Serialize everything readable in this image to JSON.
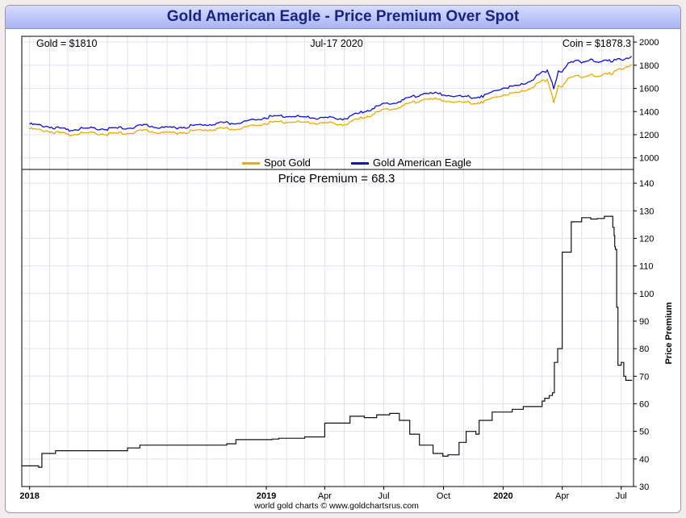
{
  "title": "Gold American Eagle - Price Premium Over Spot",
  "header": {
    "left": "Gold = $1810",
    "center": "Jul-17  2020",
    "right": "Coin = $1878.3"
  },
  "footer": "world gold charts © www.goldchartsrus.com",
  "colors": {
    "spot": "#f2a900",
    "coin": "#1010d8",
    "premium": "#111111",
    "grid": "#dfe3ee"
  },
  "chart_data": [
    {
      "type": "line",
      "title": "",
      "ylabel": "",
      "ylim": [
        900,
        2050
      ],
      "yticks": [
        1000,
        1200,
        1400,
        1600,
        1800,
        2000
      ],
      "legend_position": "bottom-center",
      "x_dates": [
        "2018-01-01",
        "2018-02-01",
        "2018-03-01",
        "2018-04-01",
        "2018-05-01",
        "2018-06-01",
        "2018-07-01",
        "2018-08-01",
        "2018-09-01",
        "2018-10-01",
        "2018-11-01",
        "2018-12-01",
        "2019-01-01",
        "2019-02-01",
        "2019-03-01",
        "2019-04-01",
        "2019-05-01",
        "2019-06-01",
        "2019-07-01",
        "2019-08-01",
        "2019-09-01",
        "2019-10-01",
        "2019-11-01",
        "2019-12-01",
        "2020-01-01",
        "2020-02-01",
        "2020-02-24",
        "2020-03-09",
        "2020-03-19",
        "2020-03-26",
        "2020-04-01",
        "2020-04-15",
        "2020-05-01",
        "2020-05-15",
        "2020-06-01",
        "2020-06-15",
        "2020-07-01",
        "2020-07-17"
      ],
      "series": [
        {
          "name": "Spot Gold",
          "values": [
            1250,
            1230,
            1200,
            1215,
            1205,
            1215,
            1235,
            1210,
            1225,
            1245,
            1250,
            1260,
            1300,
            1315,
            1305,
            1300,
            1290,
            1350,
            1410,
            1450,
            1510,
            1500,
            1475,
            1480,
            1550,
            1570,
            1640,
            1680,
            1480,
            1620,
            1610,
            1710,
            1700,
            1720,
            1710,
            1730,
            1770,
            1810
          ]
        },
        {
          "name": "Gold American Eagle",
          "values": [
            1290,
            1270,
            1240,
            1255,
            1250,
            1260,
            1280,
            1255,
            1270,
            1290,
            1300,
            1310,
            1350,
            1365,
            1350,
            1345,
            1340,
            1400,
            1460,
            1500,
            1560,
            1550,
            1525,
            1530,
            1610,
            1630,
            1710,
            1760,
            1600,
            1745,
            1740,
            1840,
            1830,
            1850,
            1830,
            1840,
            1850,
            1878
          ]
        }
      ]
    },
    {
      "type": "line",
      "title": "Price Premium = 68.3",
      "ylabel": "Price Premium",
      "ylim": [
        30,
        145
      ],
      "yticks": [
        30,
        40,
        50,
        60,
        70,
        80,
        90,
        100,
        110,
        120,
        130,
        140
      ],
      "xticks": [
        {
          "label": "2018",
          "date": "2018-01-01"
        },
        {
          "label": "2019",
          "date": "2019-01-01"
        },
        {
          "label": "Apr",
          "date": "2019-04-01"
        },
        {
          "label": "Jul",
          "date": "2019-07-01"
        },
        {
          "label": "Oct",
          "date": "2019-10-01"
        },
        {
          "label": "2020",
          "date": "2020-01-01"
        },
        {
          "label": "Apr",
          "date": "2020-04-01"
        },
        {
          "label": "Jul",
          "date": "2020-07-01"
        }
      ],
      "series": [
        {
          "name": "Price Premium",
          "x_dates": [
            "2017-12-20",
            "2018-01-15",
            "2018-01-20",
            "2018-02-10",
            "2018-06-01",
            "2018-06-20",
            "2018-11-01",
            "2018-11-15",
            "2019-01-10",
            "2019-01-20",
            "2019-03-01",
            "2019-04-01",
            "2019-05-10",
            "2019-06-01",
            "2019-06-20",
            "2019-07-10",
            "2019-07-25",
            "2019-08-10",
            "2019-08-25",
            "2019-09-15",
            "2019-09-30",
            "2019-10-08",
            "2019-10-25",
            "2019-11-05",
            "2019-11-20",
            "2019-11-25",
            "2019-12-15",
            "2020-01-15",
            "2020-02-01",
            "2020-02-20",
            "2020-03-01",
            "2020-03-05",
            "2020-03-12",
            "2020-03-17",
            "2020-03-20",
            "2020-03-25",
            "2020-04-01",
            "2020-04-15",
            "2020-05-01",
            "2020-05-15",
            "2020-05-25",
            "2020-06-05",
            "2020-06-18",
            "2020-06-20",
            "2020-06-21",
            "2020-06-22",
            "2020-06-24",
            "2020-06-26",
            "2020-07-01",
            "2020-07-05",
            "2020-07-08",
            "2020-07-17"
          ],
          "values": [
            37.5,
            37,
            42,
            43,
            44,
            45,
            45.5,
            47,
            47.2,
            47.5,
            48,
            53,
            55.5,
            55,
            56,
            56.5,
            54,
            49,
            45,
            42,
            41,
            41.5,
            46,
            50,
            49,
            54,
            57,
            58,
            59,
            59,
            61,
            62,
            63,
            64,
            75,
            80,
            115,
            126,
            127.5,
            127,
            127.2,
            128,
            124,
            121,
            117,
            116,
            95,
            74,
            75,
            70,
            68.5,
            68.3
          ]
        }
      ]
    }
  ]
}
